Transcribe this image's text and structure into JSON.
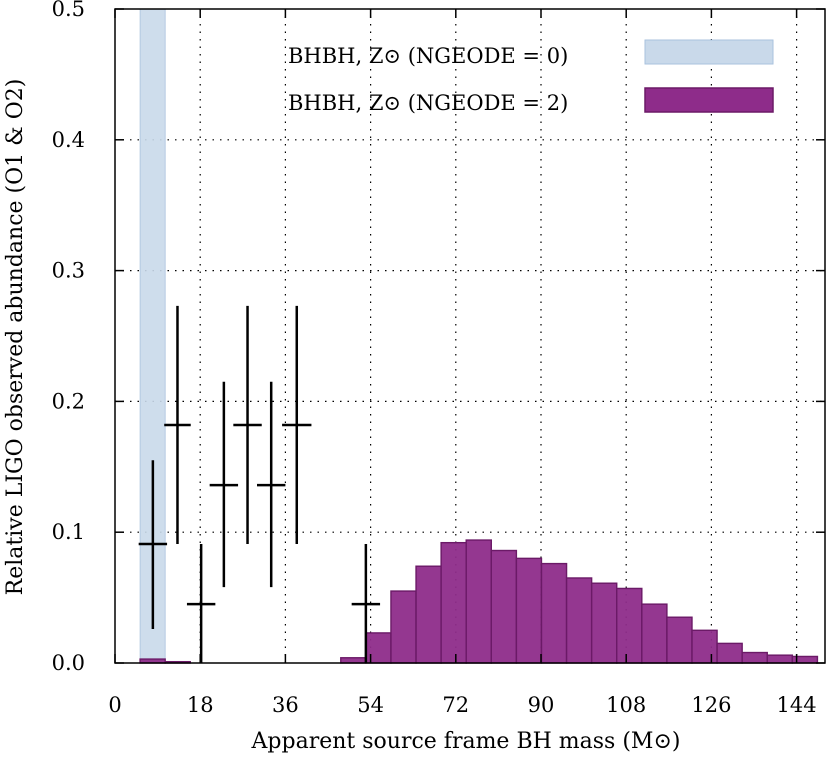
{
  "chart_data": {
    "type": "bar",
    "title": "",
    "xlabel": "Apparent source frame BH mass (M⊙)",
    "ylabel": "Relative LIGO observed abundance (O1 & O2)",
    "xlim": [
      0,
      150
    ],
    "ylim": [
      0,
      0.5
    ],
    "grid": true,
    "legend_position": "top-right",
    "xticks": [
      "0",
      "18",
      "36",
      "54",
      "72",
      "90",
      "108",
      "126",
      "144"
    ],
    "yticks": [
      "0.0",
      "0.1",
      "0.2",
      "0.3",
      "0.4",
      "0.5"
    ],
    "series": [
      {
        "name": "BHBH, Z⊙ (N_GEODE = 0)",
        "legend_label": "BHBH, Z⊙ (NGEODE = 0)",
        "color": "#c9d9ea",
        "edge_color": "#a9c2de",
        "x_start": [
          5.3
        ],
        "x_end": [
          10.6
        ],
        "values": [
          0.5
        ]
      },
      {
        "name": "BHBH, Z⊙ (N_GEODE = 2)",
        "legend_label": "BHBH, Z⊙ (NGEODE = 2)",
        "color": "#8e2c8a",
        "edge_color": "#6b1a67",
        "x_start": [
          5.3,
          10.6,
          47.7,
          53.0,
          58.3,
          63.6,
          68.9,
          74.2,
          79.5,
          84.8,
          90.1,
          95.4,
          100.7,
          106.0,
          111.3,
          116.6,
          121.9,
          127.2,
          132.5,
          137.8,
          143.1
        ],
        "x_end": [
          10.6,
          15.9,
          53.0,
          58.3,
          63.6,
          68.9,
          74.2,
          79.5,
          84.8,
          90.1,
          95.4,
          100.7,
          106.0,
          111.3,
          116.6,
          121.9,
          127.2,
          132.5,
          137.8,
          143.1,
          148.4
        ],
        "values": [
          0.003,
          0.001,
          0.004,
          0.023,
          0.055,
          0.074,
          0.092,
          0.094,
          0.086,
          0.08,
          0.076,
          0.065,
          0.061,
          0.057,
          0.045,
          0.035,
          0.025,
          0.015,
          0.008,
          0.006,
          0.005
        ]
      }
    ],
    "observations": {
      "name": "LIGO observed abundance",
      "x": [
        8.0,
        13.2,
        18.2,
        23.0,
        28.0,
        33.0,
        38.4,
        53.0
      ],
      "x_err": [
        3.0,
        2.8,
        3.0,
        3.0,
        3.0,
        3.0,
        3.1,
        3.0
      ],
      "y": [
        0.091,
        0.182,
        0.045,
        0.136,
        0.182,
        0.136,
        0.182,
        0.045
      ],
      "y_low": [
        0.026,
        0.091,
        0.0,
        0.058,
        0.091,
        0.058,
        0.091,
        0.0
      ],
      "y_high": [
        0.155,
        0.273,
        0.091,
        0.215,
        0.273,
        0.215,
        0.273,
        0.091
      ]
    }
  }
}
